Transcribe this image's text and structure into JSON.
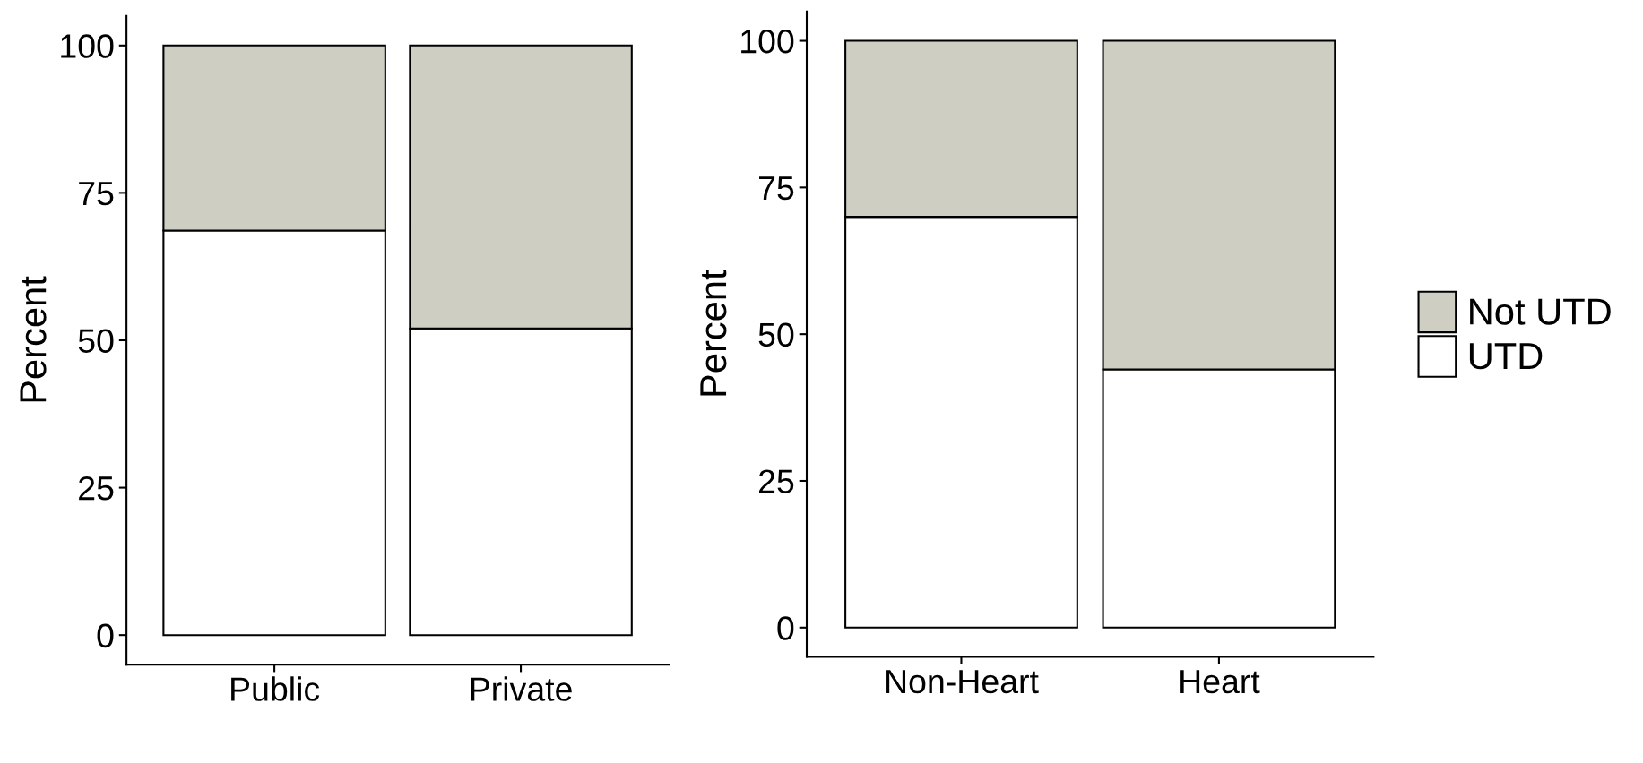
{
  "chart_data": [
    {
      "type": "bar",
      "stacked": true,
      "ylabel": "Percent",
      "categories": [
        "Public",
        "Private"
      ],
      "ylim": [
        -5,
        105
      ],
      "yticks": [
        0,
        25,
        50,
        75,
        100
      ],
      "grid": false,
      "series": [
        {
          "color": "#ffffff",
          "values": [
            68.6,
            52
          ]
        },
        {
          "color": "#cecec3",
          "values": [
            31.4,
            48
          ]
        }
      ]
    },
    {
      "type": "bar",
      "stacked": true,
      "ylabel": "Percent",
      "categories": [
        "Non-Heart",
        "Heart"
      ],
      "ylim": [
        -5,
        105
      ],
      "yticks": [
        0,
        25,
        50,
        75,
        100
      ],
      "grid": false,
      "legend": "right",
      "series": [
        {
          "name": "UTD",
          "color": "#ffffff",
          "values": [
            70,
            44
          ]
        },
        {
          "name": "Not UTD",
          "color": "#cecec3",
          "values": [
            30,
            56
          ]
        }
      ]
    }
  ]
}
